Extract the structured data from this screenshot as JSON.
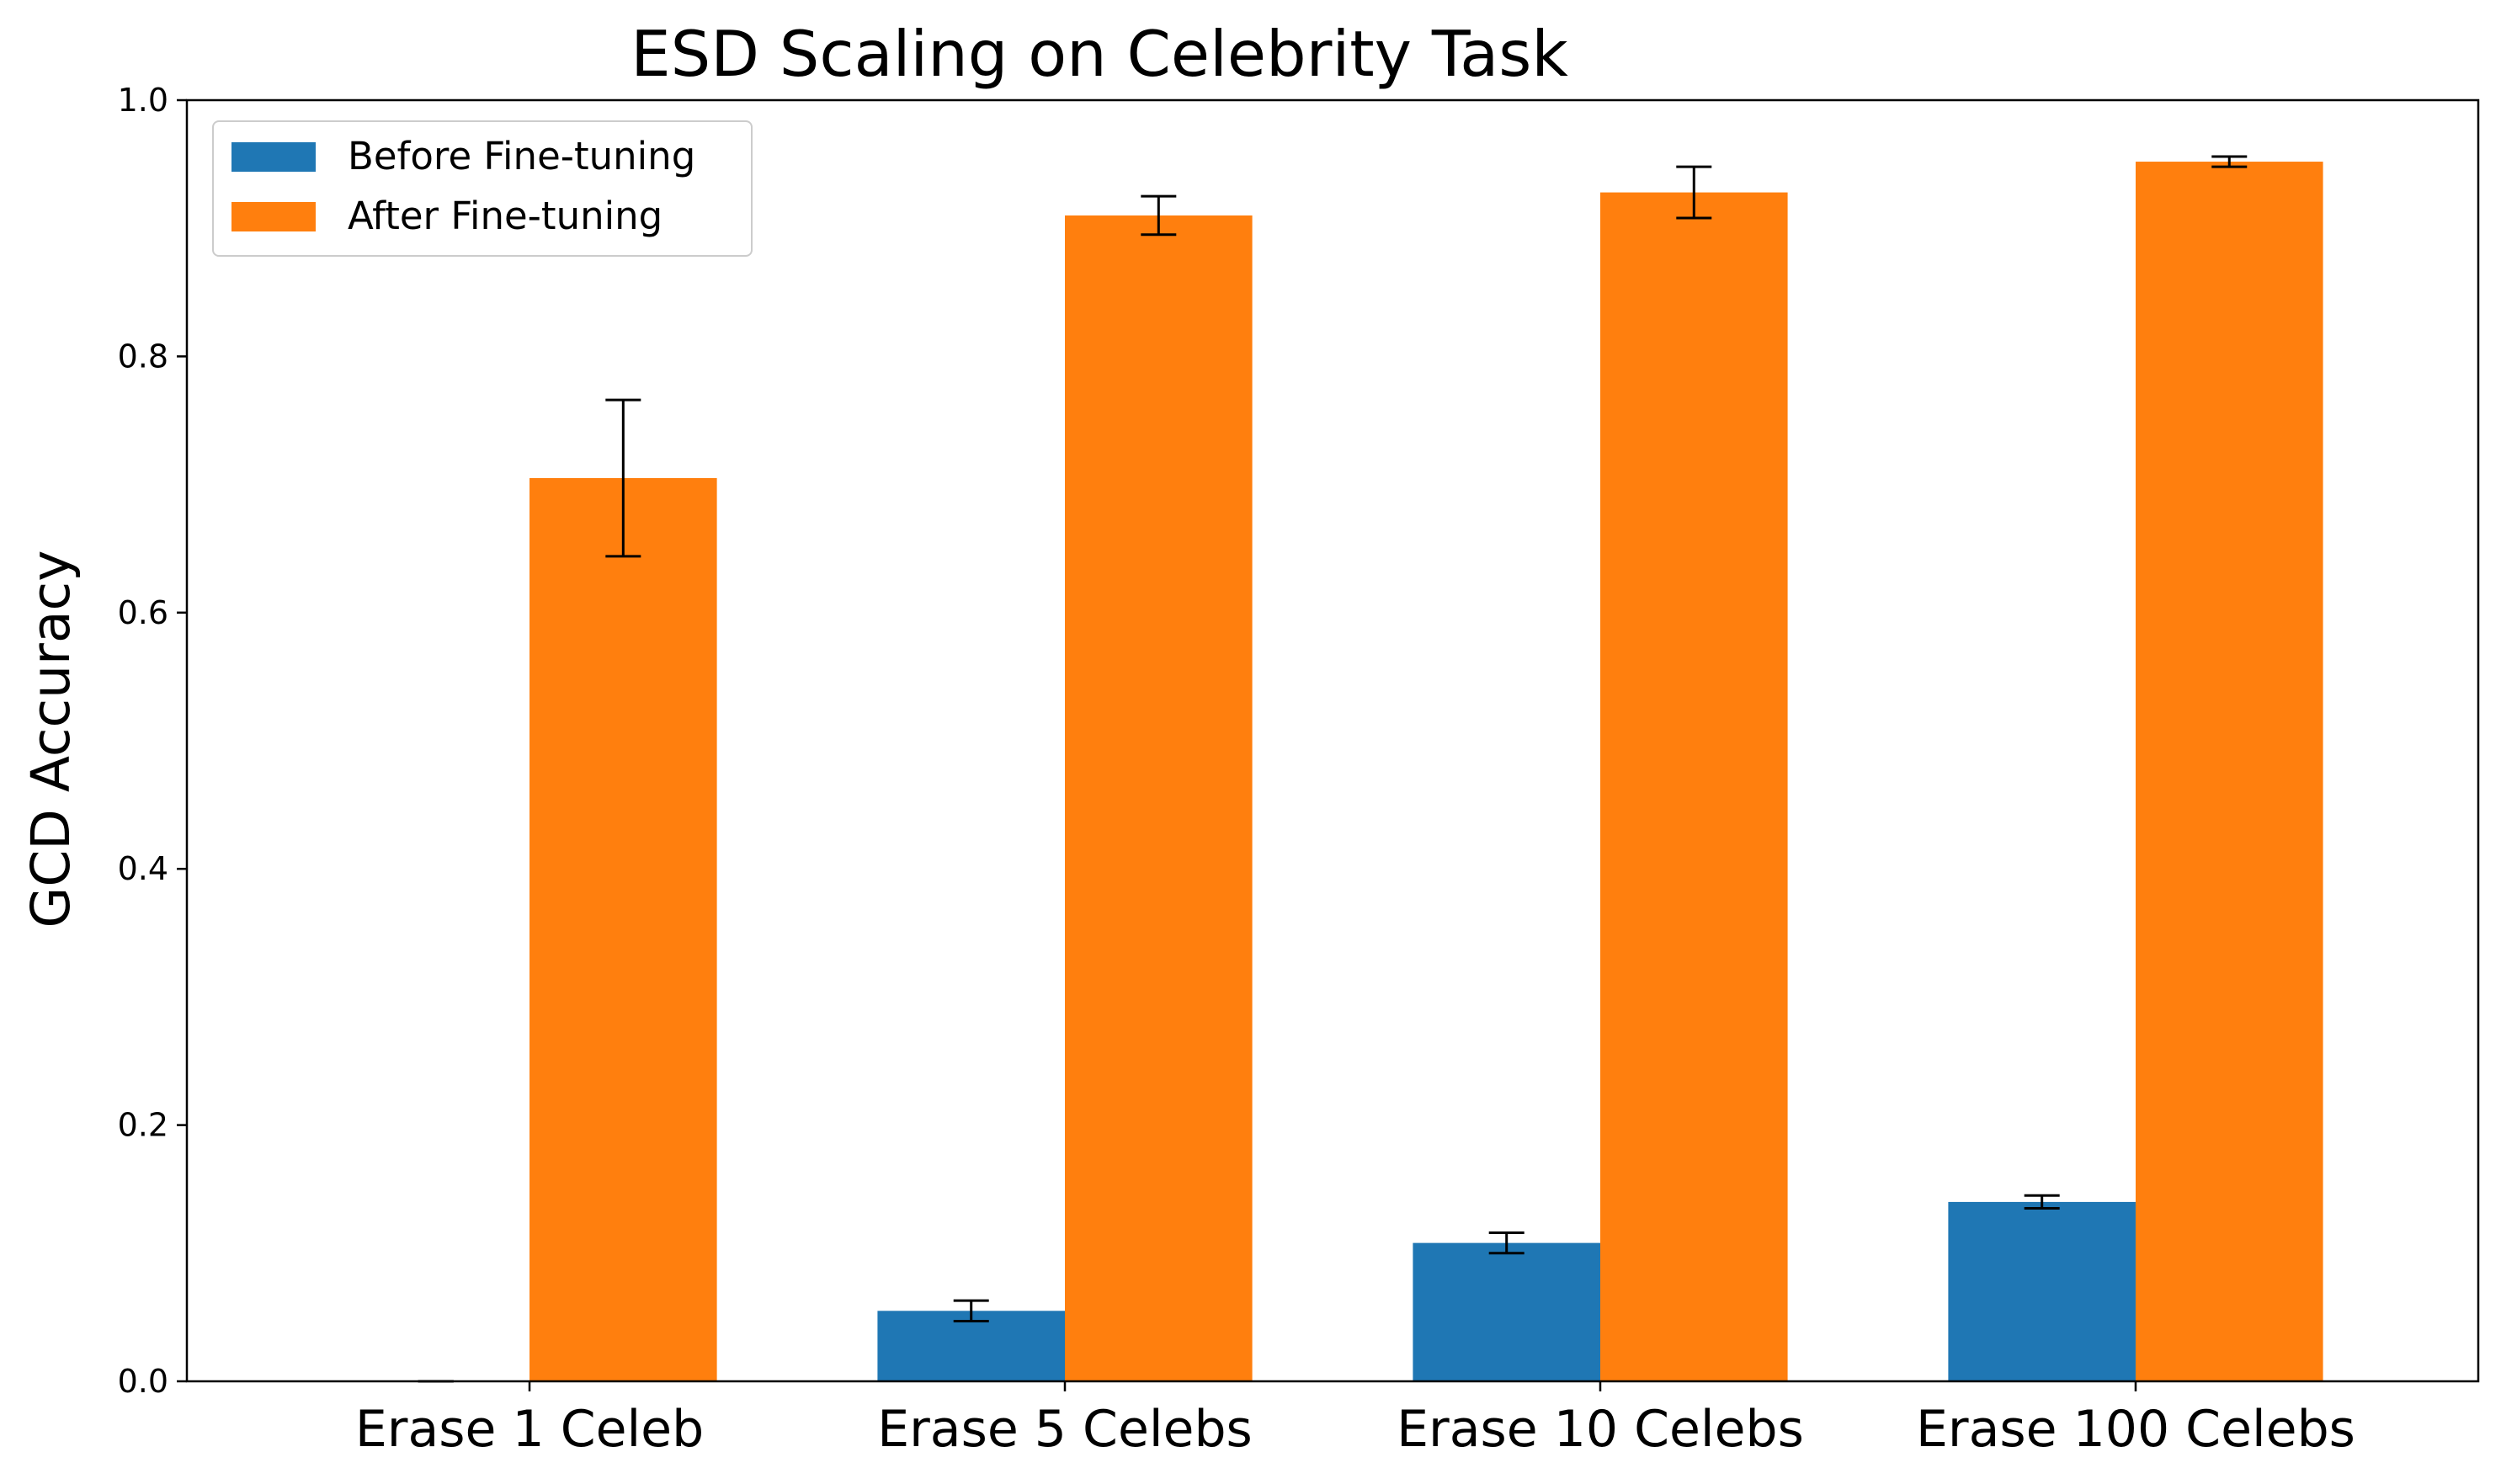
{
  "chart_data": {
    "type": "bar",
    "title": "ESD Scaling on Celebrity Task",
    "xlabel": "",
    "ylabel": "GCD Accuracy",
    "ylim": [
      0,
      1.0
    ],
    "yticks": [
      "0.0",
      "0.2",
      "0.4",
      "0.6",
      "0.8",
      "1.0"
    ],
    "categories": [
      "Erase 1 Celeb",
      "Erase 5 Celebs",
      "Erase 10 Celebs",
      "Erase 100 Celebs"
    ],
    "series": [
      {
        "name": "Before Fine-tuning",
        "color": "#1f77b4",
        "values": [
          0.0,
          0.055,
          0.108,
          0.14
        ],
        "errors": [
          0.0,
          0.008,
          0.008,
          0.005
        ]
      },
      {
        "name": "After Fine-tuning",
        "color": "#ff7f0e",
        "values": [
          0.705,
          0.91,
          0.928,
          0.952
        ],
        "errors": [
          0.061,
          0.015,
          0.02,
          0.004
        ]
      }
    ],
    "legend": {
      "position": "top-left"
    },
    "grid": false
  }
}
